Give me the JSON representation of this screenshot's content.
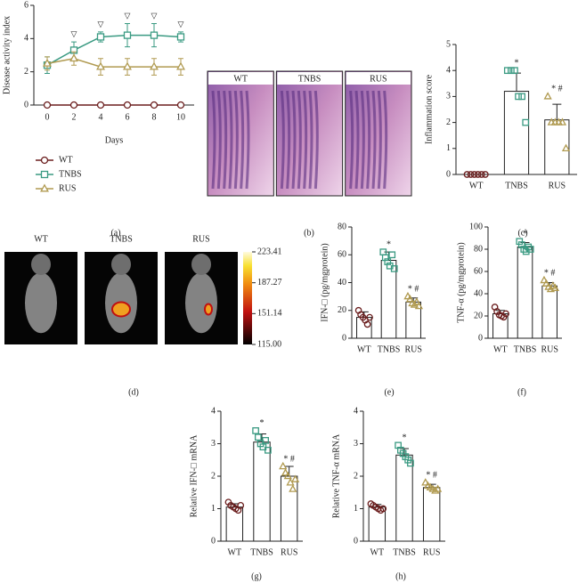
{
  "chart_data": [
    {
      "type": "line",
      "caption": "(a)",
      "ylabel": "Disease activity index",
      "xlabel": "Days",
      "x": [
        0,
        2,
        4,
        6,
        8,
        10
      ],
      "xlim": [
        -1,
        11
      ],
      "xticks": [
        0,
        2,
        4,
        6,
        8,
        10
      ],
      "ylim": [
        0,
        6
      ],
      "yticks": [
        0,
        2,
        4,
        6
      ],
      "series": [
        {
          "name": "WT",
          "color": "#6b1e1e",
          "marker": "circle",
          "values": [
            0,
            0,
            0,
            0,
            0,
            0
          ],
          "errors": [
            0,
            0,
            0,
            0,
            0,
            0
          ]
        },
        {
          "name": "TNBS",
          "color": "#3a9a82",
          "marker": "square",
          "values": [
            2.4,
            3.3,
            4.1,
            4.2,
            4.2,
            4.1
          ],
          "errors": [
            0.5,
            0.5,
            0.3,
            0.7,
            0.7,
            0.3
          ]
        },
        {
          "name": "RUS",
          "color": "#b09a50",
          "marker": "triangle",
          "values": [
            2.5,
            2.8,
            2.3,
            2.3,
            2.3,
            2.3
          ],
          "errors": [
            0.4,
            0.4,
            0.5,
            0.5,
            0.5,
            0.5
          ]
        }
      ],
      "annotations": [
        {
          "x": 2,
          "text": "▽"
        },
        {
          "x": 4,
          "text": "▽"
        },
        {
          "x": 6,
          "text": "▽"
        },
        {
          "x": 8,
          "text": "▽"
        },
        {
          "x": 10,
          "text": "▽"
        }
      ]
    },
    {
      "type": "histology",
      "caption": "(b)",
      "labels": [
        "WT",
        "TNBS",
        "RUS"
      ]
    },
    {
      "type": "bar",
      "caption": "(c)",
      "ylabel": "Inflammation score",
      "categories": [
        "WT",
        "TNBS",
        "RUS"
      ],
      "colors": [
        "#6b1e1e",
        "#3a9a82",
        "#b09a50"
      ],
      "markers": [
        "circle",
        "square",
        "triangle"
      ],
      "values": [
        0,
        3.2,
        2.1
      ],
      "errors": [
        0,
        0.7,
        0.6
      ],
      "points": [
        [
          0,
          0,
          0,
          0,
          0,
          0
        ],
        [
          4,
          4,
          4,
          3,
          3,
          2
        ],
        [
          3,
          2,
          2,
          2,
          2,
          1
        ]
      ],
      "annotations": [
        null,
        "*",
        "* #"
      ],
      "ylim": [
        0,
        5
      ],
      "yticks": [
        0,
        1,
        2,
        3,
        4,
        5
      ]
    },
    {
      "type": "imaging",
      "caption": "(d)",
      "labels": [
        "WT",
        "TNBS",
        "RUS"
      ],
      "colorbar_ticks": [
        223.41,
        187.27,
        151.14,
        {
          "value": 115,
          "label": "115.00"
        }
      ]
    },
    {
      "type": "bar",
      "caption": "(e)",
      "ylabel": "IFN-□ (pg/mgprotein)",
      "categories": [
        "WT",
        "TNBS",
        "RUS"
      ],
      "colors": [
        "#6b1e1e",
        "#3a9a82",
        "#b09a50"
      ],
      "markers": [
        "circle",
        "square",
        "triangle"
      ],
      "values": [
        15,
        56,
        26
      ],
      "errors": [
        4,
        6,
        3
      ],
      "points": [
        [
          20,
          17,
          15,
          13,
          10,
          15
        ],
        [
          62,
          58,
          55,
          52,
          60,
          50
        ],
        [
          30,
          28,
          25,
          24,
          26,
          23
        ]
      ],
      "annotations": [
        null,
        "*",
        "* #"
      ],
      "ylim": [
        0,
        80
      ],
      "yticks": [
        0,
        20,
        40,
        60,
        80
      ]
    },
    {
      "type": "bar",
      "caption": "(f)",
      "ylabel": "TNF-α (pg/mgprotein)",
      "categories": [
        "WT",
        "TNBS",
        "RUS"
      ],
      "colors": [
        "#6b1e1e",
        "#3a9a82",
        "#b09a50"
      ],
      "markers": [
        "circle",
        "square",
        "triangle"
      ],
      "values": [
        22,
        82,
        47
      ],
      "errors": [
        3,
        4,
        3
      ],
      "points": [
        [
          28,
          24,
          21,
          20,
          19,
          22
        ],
        [
          87,
          84,
          80,
          78,
          82,
          80
        ],
        [
          52,
          49,
          46,
          44,
          47,
          45
        ]
      ],
      "annotations": [
        null,
        "*",
        "* #"
      ],
      "ylim": [
        0,
        100
      ],
      "yticks": [
        0,
        20,
        40,
        60,
        80,
        100
      ]
    },
    {
      "type": "bar",
      "caption": "(g)",
      "ylabel": "Relative IFN-□ mRNA",
      "categories": [
        "WT",
        "TNBS",
        "RUS"
      ],
      "colors": [
        "#6b1e1e",
        "#3a9a82",
        "#b09a50"
      ],
      "markers": [
        "circle",
        "square",
        "triangle"
      ],
      "values": [
        1.05,
        3.05,
        2.0
      ],
      "errors": [
        0.1,
        0.25,
        0.3
      ],
      "points": [
        [
          1.2,
          1.1,
          1.05,
          1.0,
          0.95,
          1.1
        ],
        [
          3.4,
          3.2,
          3.0,
          2.9,
          3.1,
          2.8
        ],
        [
          2.3,
          2.1,
          2.0,
          1.8,
          1.6,
          1.9
        ]
      ],
      "annotations": [
        null,
        "*",
        "* #"
      ],
      "ylim": [
        0,
        4
      ],
      "yticks": [
        0,
        1,
        2,
        3,
        4
      ]
    },
    {
      "type": "bar",
      "caption": "(h)",
      "ylabel": "Relative TNF-α mRNA",
      "categories": [
        "WT",
        "TNBS",
        "RUS"
      ],
      "colors": [
        "#6b1e1e",
        "#3a9a82",
        "#b09a50"
      ],
      "markers": [
        "circle",
        "square",
        "triangle"
      ],
      "values": [
        1.05,
        2.65,
        1.65
      ],
      "errors": [
        0.08,
        0.2,
        0.1
      ],
      "points": [
        [
          1.15,
          1.1,
          1.05,
          1.0,
          0.95,
          1.0
        ],
        [
          2.95,
          2.8,
          2.7,
          2.6,
          2.5,
          2.4
        ],
        [
          1.8,
          1.7,
          1.65,
          1.6,
          1.55,
          1.6
        ]
      ],
      "annotations": [
        null,
        "*",
        "* #"
      ],
      "ylim": [
        0,
        4
      ],
      "yticks": [
        0,
        1,
        2,
        3,
        4
      ]
    }
  ]
}
